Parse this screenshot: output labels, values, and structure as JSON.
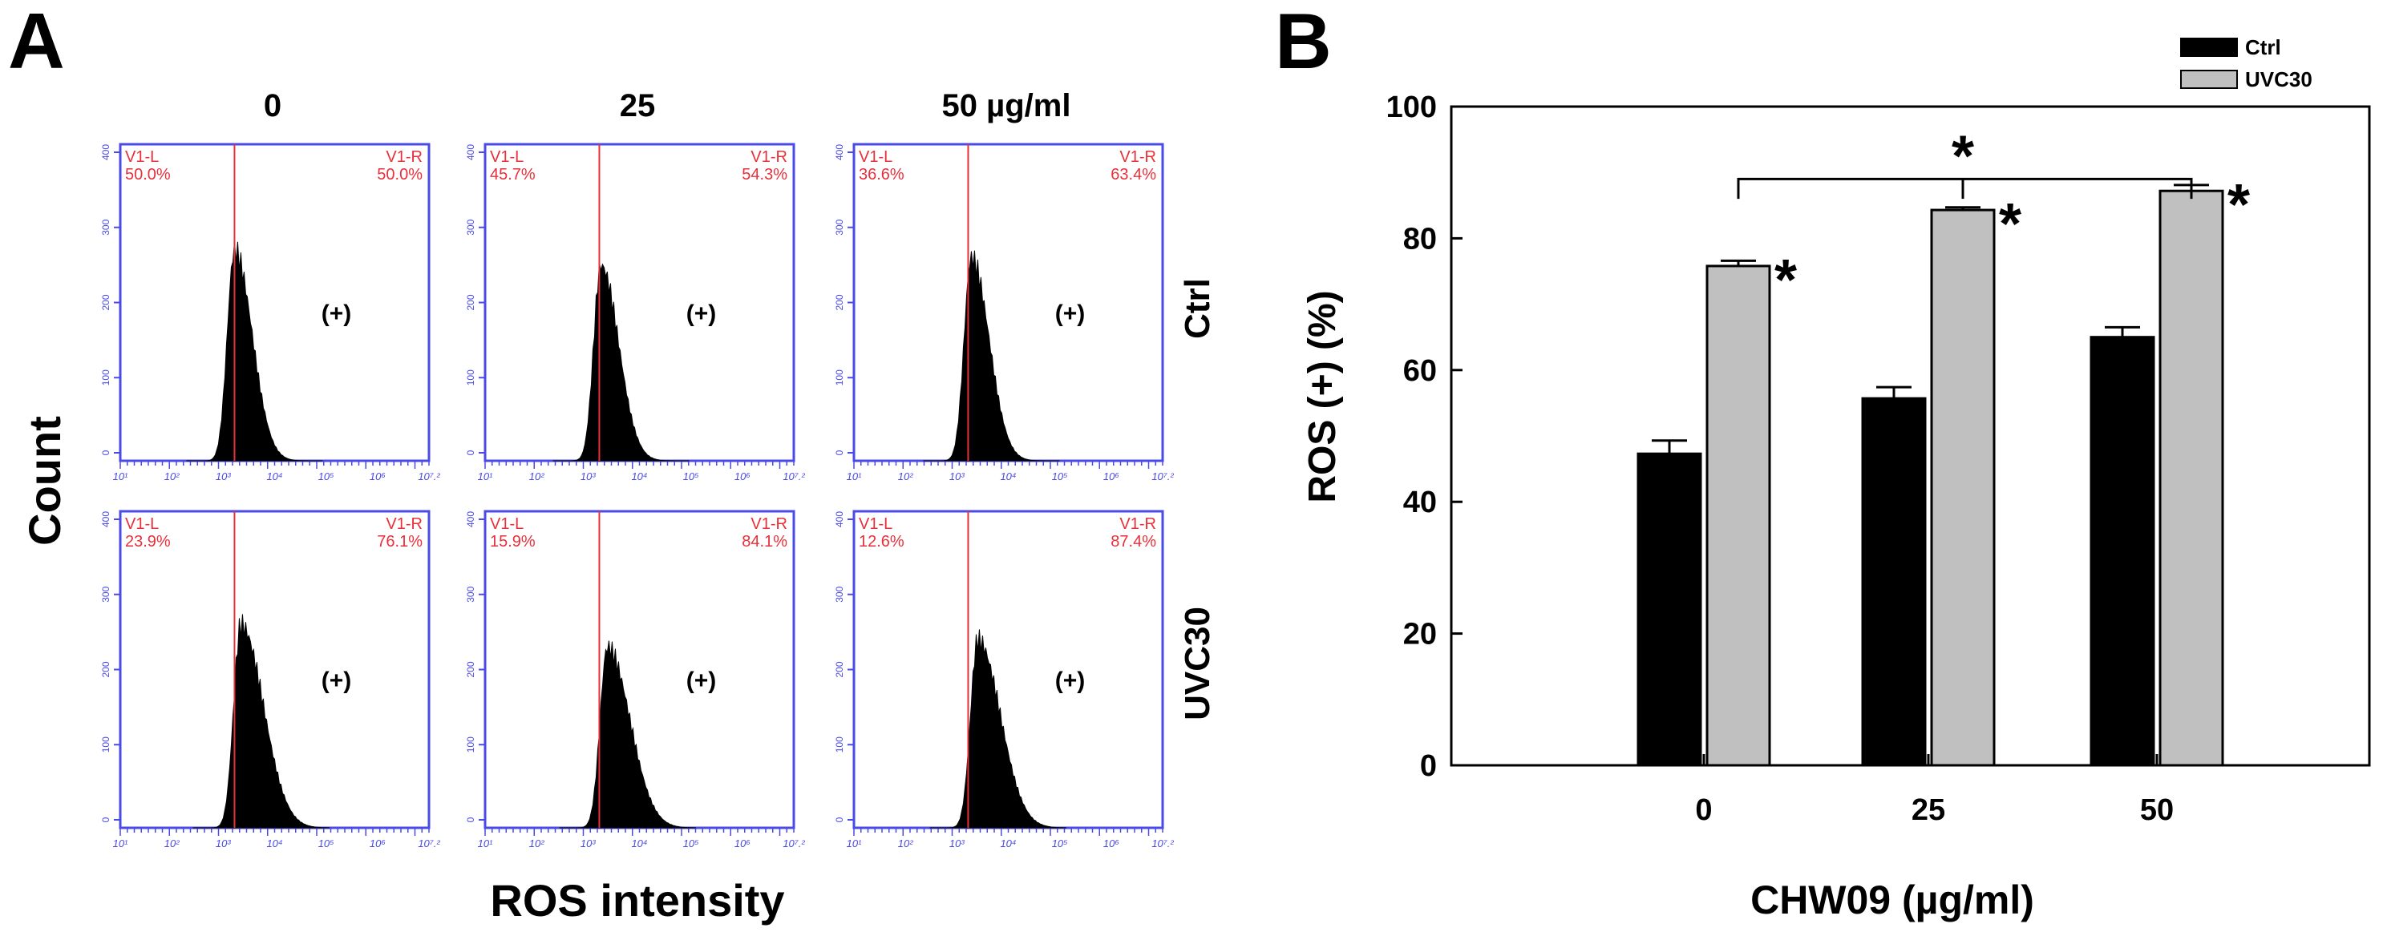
{
  "panel_a": {
    "label": "A",
    "column_headers": [
      "0",
      "25",
      "50 µg/ml"
    ],
    "row_labels": [
      "Ctrl",
      "UVC30"
    ],
    "y_label": "Count",
    "x_label": "ROS intensity",
    "positive_marker": "(+)",
    "gate_left_name": "V1-L",
    "gate_right_name": "V1-R",
    "y_ticks": [
      "0",
      "100",
      "200",
      "300",
      "400"
    ],
    "x_ticks": [
      "10¹",
      "10²",
      "10³",
      "10⁴",
      "10⁵",
      "10⁶",
      "10⁷.²"
    ],
    "gates": [
      [
        {
          "left": "50.0%",
          "right": "50.0%"
        },
        {
          "left": "45.7%",
          "right": "54.3%"
        },
        {
          "left": "36.6%",
          "right": "63.4%"
        }
      ],
      [
        {
          "left": "23.9%",
          "right": "76.1%"
        },
        {
          "left": "15.9%",
          "right": "84.1%"
        },
        {
          "left": "12.6%",
          "right": "87.4%"
        }
      ]
    ],
    "peak_counts": [
      [
        280,
        260,
        270
      ],
      [
        270,
        240,
        250
      ]
    ]
  },
  "chart_data": {
    "type": "bar",
    "panel_label": "B",
    "categories": [
      "0",
      "25",
      "50"
    ],
    "series": [
      {
        "name": "Ctrl",
        "values": [
          47.3,
          55.7,
          65.0
        ],
        "errors": [
          2.0,
          1.7,
          1.5
        ],
        "color": "#000000"
      },
      {
        "name": "UVC30",
        "values": [
          75.8,
          84.3,
          87.2
        ],
        "errors": [
          0.8,
          0.4,
          0.9
        ],
        "color": "#c0c0c0"
      }
    ],
    "xlabel": "CHW09 (µg/ml)",
    "ylabel": "ROS (+) (%)",
    "ylim": [
      0,
      100
    ],
    "yticks": [
      "0",
      "20",
      "40",
      "60",
      "80",
      "100"
    ],
    "legend": [
      "Ctrl",
      "UVC30"
    ],
    "legend_position": "top-right",
    "significance_marker": "*"
  },
  "colors": {
    "axis_blue": "#4a4ae6",
    "gate_red": "#e8303a",
    "bar_ctrl": "#000000",
    "bar_uvc": "#c0c0c0"
  }
}
